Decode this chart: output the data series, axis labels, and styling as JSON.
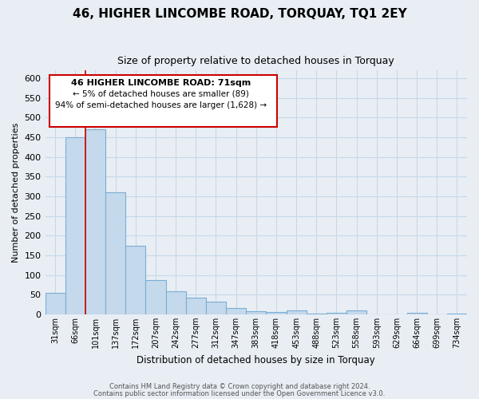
{
  "title": "46, HIGHER LINCOMBE ROAD, TORQUAY, TQ1 2EY",
  "subtitle": "Size of property relative to detached houses in Torquay",
  "xlabel": "Distribution of detached houses by size in Torquay",
  "ylabel": "Number of detached properties",
  "bar_color": "#c5d9ec",
  "bar_edge_color": "#7aadd4",
  "categories": [
    "31sqm",
    "66sqm",
    "101sqm",
    "137sqm",
    "172sqm",
    "207sqm",
    "242sqm",
    "277sqm",
    "312sqm",
    "347sqm",
    "383sqm",
    "418sqm",
    "453sqm",
    "488sqm",
    "523sqm",
    "558sqm",
    "593sqm",
    "629sqm",
    "664sqm",
    "699sqm",
    "734sqm"
  ],
  "values": [
    55,
    450,
    470,
    310,
    175,
    88,
    58,
    42,
    32,
    15,
    8,
    6,
    10,
    2,
    4,
    10,
    0,
    0,
    3,
    0,
    2
  ],
  "ylim": [
    0,
    620
  ],
  "yticks": [
    0,
    50,
    100,
    150,
    200,
    250,
    300,
    350,
    400,
    450,
    500,
    550,
    600
  ],
  "grid_color": "#c8d8e8",
  "vline_x": 1.5,
  "vline_color": "#cc0000",
  "annotation_title": "46 HIGHER LINCOMBE ROAD: 71sqm",
  "annotation_line1": "← 5% of detached houses are smaller (89)",
  "annotation_line2": "94% of semi-detached houses are larger (1,628) →",
  "annotation_box_facecolor": "#ffffff",
  "annotation_border_color": "#cc0000",
  "footer1": "Contains HM Land Registry data © Crown copyright and database right 2024.",
  "footer2": "Contains public sector information licensed under the Open Government Licence v3.0.",
  "bg_color": "#e8eef4",
  "plot_bg_color": "#e8eef4"
}
